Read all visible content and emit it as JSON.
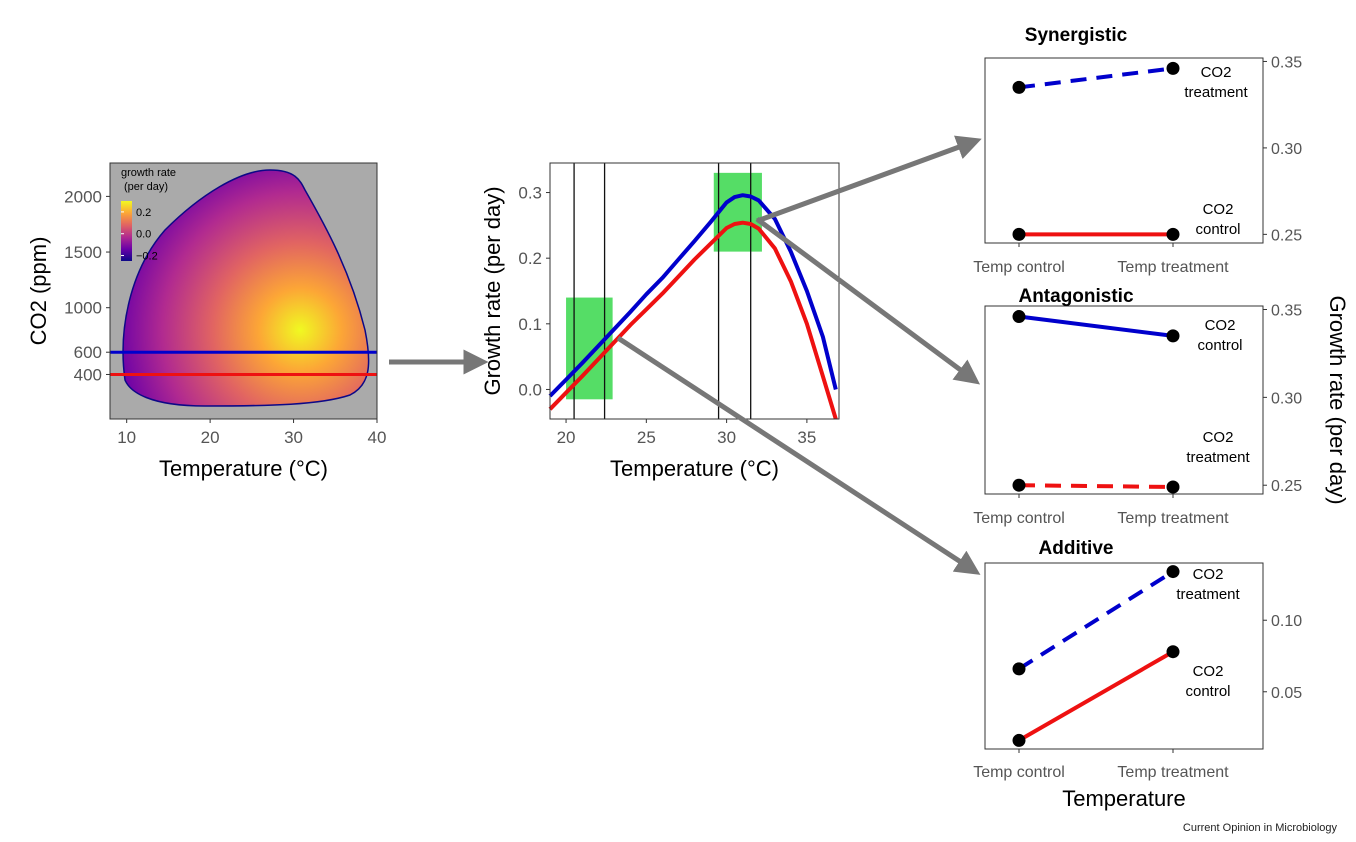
{
  "credit": "Current Opinion in Microbiology",
  "colors": {
    "blue": "#0000cc",
    "red": "#ee1111",
    "green": "#55dd66",
    "arrow": "#777777",
    "panel_bg": "#aaaaaa",
    "axis": "#333333"
  },
  "chart_data": [
    {
      "type": "heatmap",
      "xlabel": "Temperature (°C)",
      "ylabel": "CO2 (ppm)",
      "xlim": [
        8,
        40
      ],
      "ylim": [
        0,
        2300
      ],
      "xticks": [
        10,
        20,
        30,
        40
      ],
      "yticks": [
        400,
        600,
        1000,
        1500,
        2000
      ],
      "legend": {
        "title_line1": "growth rate",
        "title_line2": "(per day)",
        "ticks": [
          {
            "label": "0.2",
            "value": 0.2
          },
          {
            "label": "0.0",
            "value": 0.0
          },
          {
            "label": "−0.2",
            "value": -0.2
          }
        ],
        "range": [
          -0.25,
          0.3
        ],
        "placement": "top-left",
        "colormap": [
          "#0d0887",
          "#6a00a8",
          "#b12a90",
          "#e16462",
          "#fca636",
          "#f0f921"
        ]
      },
      "hlines": [
        {
          "y": 600,
          "color": "#0000cc"
        },
        {
          "y": 400,
          "color": "#ee1111"
        }
      ]
    },
    {
      "type": "line",
      "xlabel": "Temperature (°C)",
      "ylabel": "Growth rate (per day)",
      "xlim": [
        19,
        37
      ],
      "ylim": [
        -0.045,
        0.345
      ],
      "xticks": [
        20,
        25,
        30,
        35
      ],
      "yticks": [
        0.0,
        0.1,
        0.2,
        0.3
      ],
      "ytick_labels": [
        "0.0",
        "0.1",
        "0.2",
        "0.3"
      ],
      "series": [
        {
          "color": "#0000cc",
          "x": [
            19,
            20,
            21,
            22,
            23,
            24,
            25,
            26,
            27,
            28,
            29,
            30,
            30.5,
            31,
            31.5,
            32,
            33,
            34,
            35,
            36,
            36.8
          ],
          "y": [
            -0.01,
            0.015,
            0.04,
            0.066,
            0.092,
            0.118,
            0.145,
            0.17,
            0.198,
            0.226,
            0.255,
            0.285,
            0.293,
            0.296,
            0.294,
            0.288,
            0.26,
            0.21,
            0.15,
            0.08,
            0.0
          ]
        },
        {
          "color": "#ee1111",
          "x": [
            19,
            20,
            21,
            22,
            23,
            24,
            25,
            26,
            27,
            28,
            29,
            30,
            30.5,
            31,
            31.5,
            32,
            33,
            34,
            35,
            36,
            36.8
          ],
          "y": [
            -0.03,
            -0.005,
            0.02,
            0.046,
            0.072,
            0.098,
            0.122,
            0.146,
            0.172,
            0.198,
            0.222,
            0.246,
            0.252,
            0.254,
            0.252,
            0.245,
            0.215,
            0.165,
            0.1,
            0.02,
            -0.045
          ]
        }
      ],
      "vlines": [
        20.5,
        22.4,
        29.5,
        31.5
      ],
      "highlight_boxes": [
        {
          "x": [
            20.0,
            22.9
          ],
          "y": [
            -0.015,
            0.14
          ]
        },
        {
          "x": [
            29.2,
            32.2
          ],
          "y": [
            0.21,
            0.33
          ]
        }
      ]
    },
    {
      "type": "line",
      "title": "Synergistic",
      "categories": [
        "Temp control",
        "Temp treatment"
      ],
      "ylim": [
        0.245,
        0.352
      ],
      "yticks": [
        0.25,
        0.3,
        0.35
      ],
      "ytick_labels": [
        "0.25",
        "0.30",
        "0.35"
      ],
      "series": [
        {
          "name": "CO2 treatment",
          "label_line1": "CO2",
          "label_line2": "treatment",
          "values": [
            0.335,
            0.346
          ],
          "color": "#0000cc",
          "dashed": true
        },
        {
          "name": "CO2 control",
          "label_line1": "CO2",
          "label_line2": "control",
          "values": [
            0.25,
            0.25
          ],
          "color": "#ee1111",
          "dashed": false
        }
      ]
    },
    {
      "type": "line",
      "title": "Antagonistic",
      "categories": [
        "Temp control",
        "Temp treatment"
      ],
      "ylim": [
        0.245,
        0.352
      ],
      "yticks": [
        0.25,
        0.3,
        0.35
      ],
      "ytick_labels": [
        "0.25",
        "0.30",
        "0.35"
      ],
      "ylabel": "Growth rate (per day)",
      "series": [
        {
          "name": "CO2 control",
          "label_line1": "CO2",
          "label_line2": "control",
          "values": [
            0.346,
            0.335
          ],
          "color": "#0000cc",
          "dashed": false
        },
        {
          "name": "CO2 treatment",
          "label_line1": "CO2",
          "label_line2": "treatment",
          "values": [
            0.25,
            0.249
          ],
          "color": "#ee1111",
          "dashed": true
        }
      ]
    },
    {
      "type": "line",
      "title": "Additive",
      "categories": [
        "Temp control",
        "Temp treatment"
      ],
      "xlabel": "Temperature",
      "ylim": [
        0.01,
        0.14
      ],
      "yticks": [
        0.05,
        0.1
      ],
      "ytick_labels": [
        "0.05",
        "0.10"
      ],
      "series": [
        {
          "name": "CO2 treatment",
          "label_line1": "CO2",
          "label_line2": "treatment",
          "values": [
            0.066,
            0.134
          ],
          "color": "#0000cc",
          "dashed": true
        },
        {
          "name": "CO2 control",
          "label_line1": "CO2",
          "label_line2": "control",
          "values": [
            0.016,
            0.078
          ],
          "color": "#ee1111",
          "dashed": false
        }
      ]
    }
  ]
}
